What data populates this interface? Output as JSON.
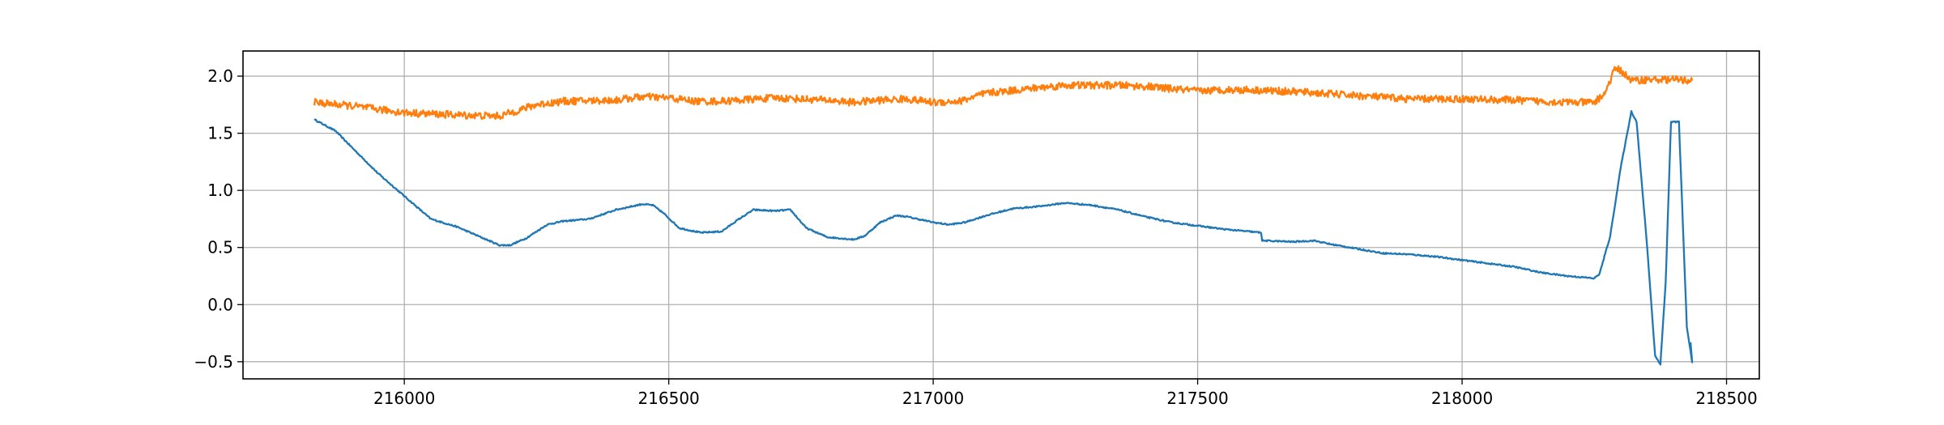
{
  "chart_data": {
    "type": "line",
    "title": "",
    "xlabel": "",
    "ylabel": "",
    "xlim": [
      215695,
      218562
    ],
    "ylim": [
      -0.65,
      2.22
    ],
    "grid": true,
    "x_ticks": [
      216000,
      216500,
      217000,
      217500,
      218000,
      218500
    ],
    "y_ticks": [
      -0.5,
      0.0,
      0.5,
      1.0,
      1.5,
      2.0
    ],
    "x_tick_labels": [
      "216000",
      "216500",
      "217000",
      "217500",
      "218000",
      "218500"
    ],
    "y_tick_labels": [
      "−0.5",
      "0.0",
      "0.5",
      "1.0",
      "1.5",
      "2.0"
    ],
    "series": [
      {
        "color": "#1f77b4",
        "noise": 0.006,
        "x": [
          215830,
          215870,
          215900,
          215950,
          216000,
          216050,
          216100,
          216150,
          216180,
          216200,
          216230,
          216270,
          216300,
          216350,
          216400,
          216450,
          216470,
          216490,
          216520,
          216560,
          216600,
          216630,
          216660,
          216700,
          216730,
          216760,
          216800,
          216850,
          216870,
          216900,
          216930,
          216950,
          217000,
          217030,
          217060,
          217100,
          217150,
          217200,
          217250,
          217300,
          217350,
          217400,
          217450,
          217500,
          217550,
          217620,
          217622,
          217680,
          217720,
          217750,
          217800,
          217850,
          217900,
          217950,
          218000,
          218050,
          218100,
          218150,
          218200,
          218250,
          218260,
          218280,
          218300,
          218320,
          218330,
          218350,
          218365,
          218375,
          218385,
          218395,
          218410,
          218425,
          218435,
          218432
        ],
        "values": [
          1.62,
          1.52,
          1.38,
          1.15,
          0.95,
          0.75,
          0.68,
          0.58,
          0.52,
          0.52,
          0.58,
          0.7,
          0.73,
          0.75,
          0.83,
          0.88,
          0.87,
          0.8,
          0.67,
          0.63,
          0.64,
          0.74,
          0.83,
          0.82,
          0.83,
          0.67,
          0.59,
          0.57,
          0.6,
          0.72,
          0.78,
          0.77,
          0.72,
          0.7,
          0.72,
          0.78,
          0.84,
          0.86,
          0.89,
          0.87,
          0.83,
          0.77,
          0.72,
          0.69,
          0.66,
          0.63,
          0.56,
          0.55,
          0.56,
          0.53,
          0.49,
          0.45,
          0.44,
          0.42,
          0.39,
          0.36,
          0.33,
          0.28,
          0.25,
          0.23,
          0.27,
          0.6,
          1.2,
          1.69,
          1.6,
          0.5,
          -0.45,
          -0.52,
          0.2,
          1.6,
          1.6,
          -0.2,
          -0.5,
          -0.33
        ]
      },
      {
        "color": "#ff7f0e",
        "noise": 0.032,
        "x": [
          215830,
          215900,
          216000,
          216100,
          216180,
          216250,
          216300,
          216400,
          216450,
          216500,
          216550,
          216600,
          216700,
          216800,
          216850,
          216900,
          216950,
          217000,
          217050,
          217100,
          217200,
          217250,
          217300,
          217350,
          217400,
          217450,
          217500,
          217550,
          217600,
          217700,
          217800,
          217900,
          218000,
          218100,
          218200,
          218250,
          218270,
          218290,
          218300,
          218320,
          218350,
          218400,
          218435
        ],
        "values": [
          1.77,
          1.74,
          1.68,
          1.66,
          1.65,
          1.75,
          1.78,
          1.79,
          1.82,
          1.81,
          1.78,
          1.78,
          1.81,
          1.79,
          1.77,
          1.79,
          1.8,
          1.77,
          1.78,
          1.85,
          1.9,
          1.92,
          1.92,
          1.92,
          1.91,
          1.89,
          1.87,
          1.88,
          1.88,
          1.86,
          1.83,
          1.8,
          1.8,
          1.79,
          1.77,
          1.77,
          1.85,
          2.07,
          2.05,
          1.96,
          1.97,
          1.97,
          1.96
        ]
      }
    ]
  }
}
